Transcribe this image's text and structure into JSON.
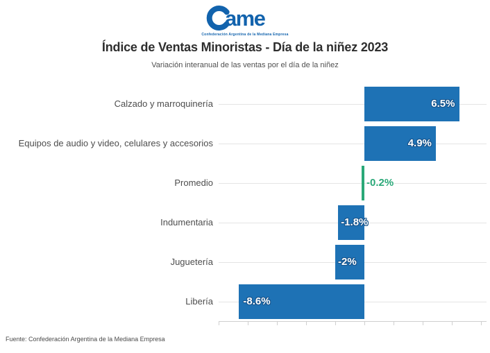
{
  "logo": {
    "brand": "Came",
    "tagline": "Confederación Argentina de la Mediana Empresa",
    "color": "#1263ad"
  },
  "header": {
    "title": "Índice de Ventas Minoristas - Día de la niñez 2023",
    "subtitle": "Variación interanual de las ventas por el día de la niñez"
  },
  "footer": {
    "source": "Fuente: Confederación Argentina de la Mediana Empresa"
  },
  "chart_data": {
    "type": "bar",
    "orientation": "horizontal",
    "title": "Índice de Ventas Minoristas - Día de la niñez 2023",
    "subtitle": "Variación interanual de las ventas por el día de la niñez",
    "categories": [
      "Calzado y marroquinería",
      "Equipos de audio y video, celulares y accesorios",
      "Promedio",
      "Indumentaria",
      "Juguetería",
      "Libería"
    ],
    "values": [
      6.5,
      4.9,
      -0.2,
      -1.8,
      -2,
      -8.6
    ],
    "value_labels": [
      "6.5%",
      "4.9%",
      "-0.2%",
      "-1.8%",
      "-2%",
      "-8.6%"
    ],
    "value_label_positions": [
      "inside-right",
      "inside-right",
      "outside-right",
      "overflow-right",
      "overflow-right",
      "inside-left"
    ],
    "bar_colors": [
      "#1e72b5",
      "#1e72b5",
      "#2aa878",
      "#1e72b5",
      "#1e72b5",
      "#1e72b5"
    ],
    "colors": {
      "bar_blue": "#1e72b5",
      "accent_green": "#2aa878"
    },
    "xlabel": "",
    "ylabel": "",
    "xlim": [
      -10,
      8.4
    ],
    "axis_ticks": [
      -10,
      -8,
      -6,
      -4,
      -2,
      0,
      2,
      4,
      6,
      8
    ],
    "grid": "horizontal-row-lines",
    "tick_labels_visible": false,
    "legend": "none"
  }
}
